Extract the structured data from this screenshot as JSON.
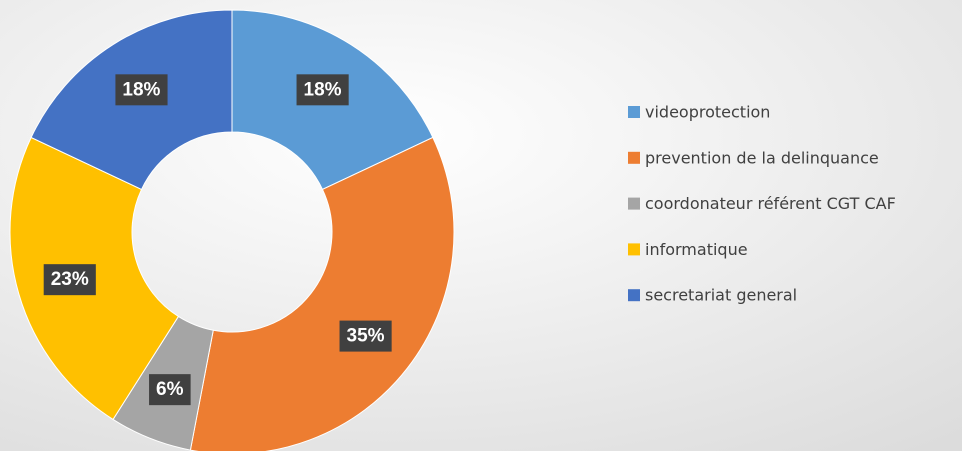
{
  "chart_data": {
    "type": "donut",
    "categories": [
      "videoprotection",
      "prevention de la delinquance",
      "coordonateur référent  CGT CAF",
      "informatique",
      "secretariat general"
    ],
    "values": [
      18,
      35,
      6,
      23,
      18
    ],
    "value_labels": [
      "18%",
      "35%",
      "6%",
      "23%",
      "18%"
    ],
    "colors": [
      "#5b9bd5",
      "#ed7d31",
      "#a5a5a5",
      "#ffc000",
      "#4472c4"
    ],
    "legend": "right"
  }
}
